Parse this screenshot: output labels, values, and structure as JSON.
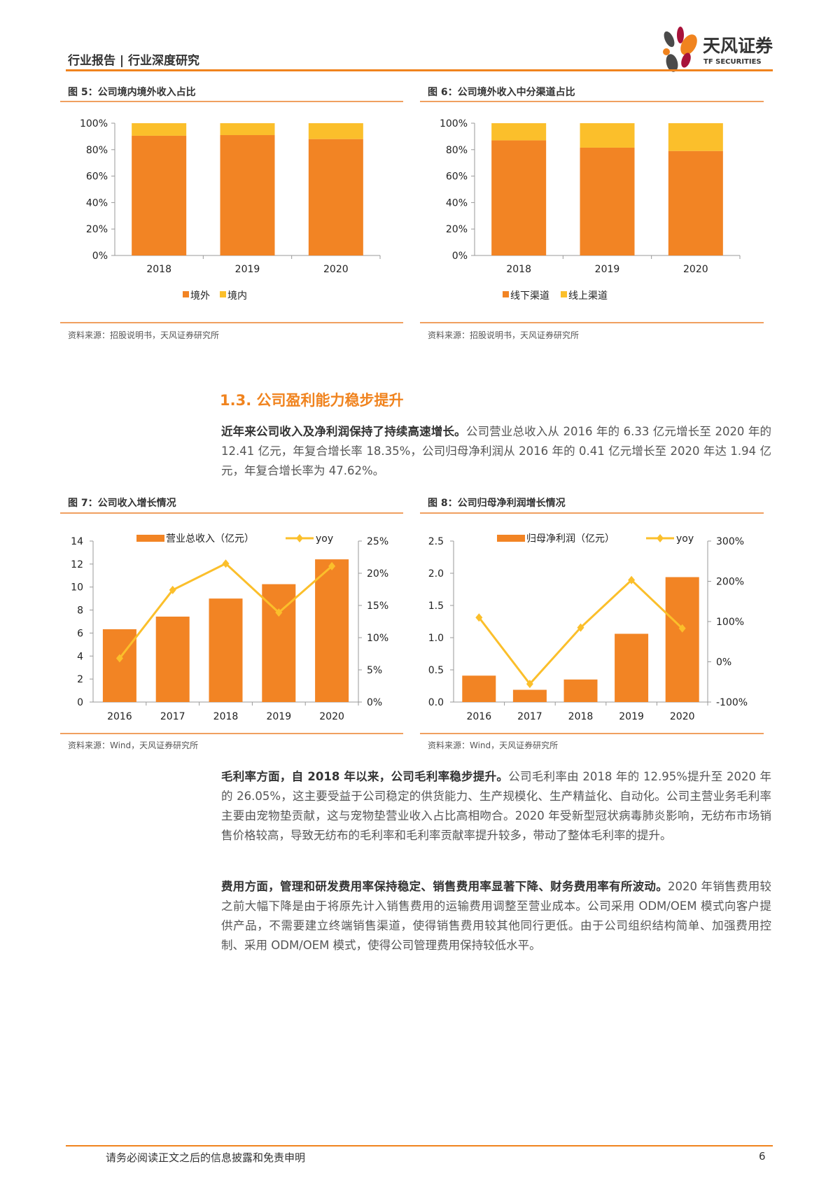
{
  "header": {
    "title": "行业报告 | 行业深度研究",
    "logo_cn": "天风证券",
    "logo_en": "TF SECURITIES"
  },
  "colors": {
    "accent": "#f0831e",
    "bar_primary": "#f28424",
    "bar_secondary": "#fbbf2b",
    "line": "#fbbf2b"
  },
  "figures": [
    {
      "title": "图 5：公司境内境外收入占比",
      "source": "资料来源：招股说明书，天风证券研究所"
    },
    {
      "title": "图 6：公司境外收入中分渠道占比",
      "source": "资料来源：招股说明书，天风证券研究所"
    },
    {
      "title": "图 7：公司收入增长情况",
      "source": "资料来源：Wind，天风证券研究所"
    },
    {
      "title": "图 8：公司归母净利润增长情况",
      "source": "资料来源：Wind，天风证券研究所"
    }
  ],
  "chart_data": [
    {
      "type": "bar",
      "stacked": true,
      "categories": [
        "2018",
        "2019",
        "2020"
      ],
      "series": [
        {
          "name": "境外",
          "values": [
            90.5,
            91,
            88
          ]
        },
        {
          "name": "境内",
          "values": [
            9.5,
            9,
            12
          ]
        }
      ],
      "yticks": [
        "0%",
        "20%",
        "40%",
        "60%",
        "80%",
        "100%"
      ],
      "ylim": [
        0,
        100
      ],
      "legend": "bottom"
    },
    {
      "type": "bar",
      "stacked": true,
      "categories": [
        "2018",
        "2019",
        "2020"
      ],
      "series": [
        {
          "name": "线下渠道",
          "values": [
            87,
            81.5,
            79
          ]
        },
        {
          "name": "线上渠道",
          "values": [
            13,
            18.5,
            21
          ]
        }
      ],
      "yticks": [
        "0%",
        "20%",
        "40%",
        "60%",
        "80%",
        "100%"
      ],
      "ylim": [
        0,
        100
      ],
      "legend": "bottom"
    },
    {
      "type": "bar+line",
      "categories": [
        "2016",
        "2017",
        "2018",
        "2019",
        "2020"
      ],
      "series": [
        {
          "name": "营业总收入（亿元）",
          "values": [
            6.33,
            7.43,
            9.0,
            10.25,
            12.41
          ],
          "axis": "left"
        },
        {
          "name": "yoy",
          "values": [
            6.8,
            17.4,
            21.5,
            13.9,
            21.1
          ],
          "axis": "right"
        }
      ],
      "yticks": [
        "0",
        "2",
        "4",
        "6",
        "8",
        "10",
        "12",
        "14"
      ],
      "ylim": [
        0,
        14
      ],
      "y2ticks": [
        "0%",
        "5%",
        "10%",
        "15%",
        "20%",
        "25%"
      ],
      "y2lim": [
        0,
        25
      ],
      "legend": "top"
    },
    {
      "type": "bar+line",
      "categories": [
        "2016",
        "2017",
        "2018",
        "2019",
        "2020"
      ],
      "series": [
        {
          "name": "归母净利润（亿元）",
          "values": [
            0.41,
            0.19,
            0.35,
            1.06,
            1.94
          ],
          "axis": "left"
        },
        {
          "name": "yoy",
          "values": [
            110,
            -55,
            85,
            203,
            83
          ],
          "axis": "right"
        }
      ],
      "yticks": [
        "0.0",
        "0.5",
        "1.0",
        "1.5",
        "2.0",
        "2.5"
      ],
      "ylim": [
        0,
        2.5
      ],
      "y2ticks": [
        "-100%",
        "0%",
        "100%",
        "200%",
        "300%"
      ],
      "y2lim": [
        -100,
        300
      ],
      "legend": "top"
    }
  ],
  "section": {
    "heading": "1.3. 公司盈利能力稳步提升"
  },
  "paragraphs": [
    {
      "bold": "近年来公司收入及净利润保持了持续高速增长。",
      "text": "公司营业总收入从 2016 年的 6.33 亿元增长至 2020 年的 12.41 亿元，年复合增长率 18.35%，公司归母净利润从 2016 年的 0.41 亿元增长至 2020 年达 1.94 亿元，年复合增长率为 47.62%。"
    },
    {
      "bold": "毛利率方面，自 2018 年以来，公司毛利率稳步提升。",
      "text": "公司毛利率由 2018 年的 12.95%提升至 2020 年的 26.05%，这主要受益于公司稳定的供货能力、生产规模化、生产精益化、自动化。公司主营业务毛利率主要由宠物垫贡献，这与宠物垫营业收入占比高相吻合。2020 年受新型冠状病毒肺炎影响，无纺布市场销售价格较高，导致无纺布的毛利率和毛利率贡献率提升较多，带动了整体毛利率的提升。"
    },
    {
      "bold": "费用方面，管理和研发费用率保持稳定、销售费用率显著下降、财务费用率有所波动。",
      "text": "2020 年销售费用较之前大幅下降是由于将原先计入销售费用的运输费用调整至营业成本。公司采用 ODM/OEM 模式向客户提供产品，不需要建立终端销售渠道，使得销售费用较其他同行更低。由于公司组织结构简单、加强费用控制、采用 ODM/OEM 模式，使得公司管理费用保持较低水平。"
    }
  ],
  "footer": {
    "disclaimer": "请务必阅读正文之后的信息披露和免责申明",
    "page": "6"
  }
}
